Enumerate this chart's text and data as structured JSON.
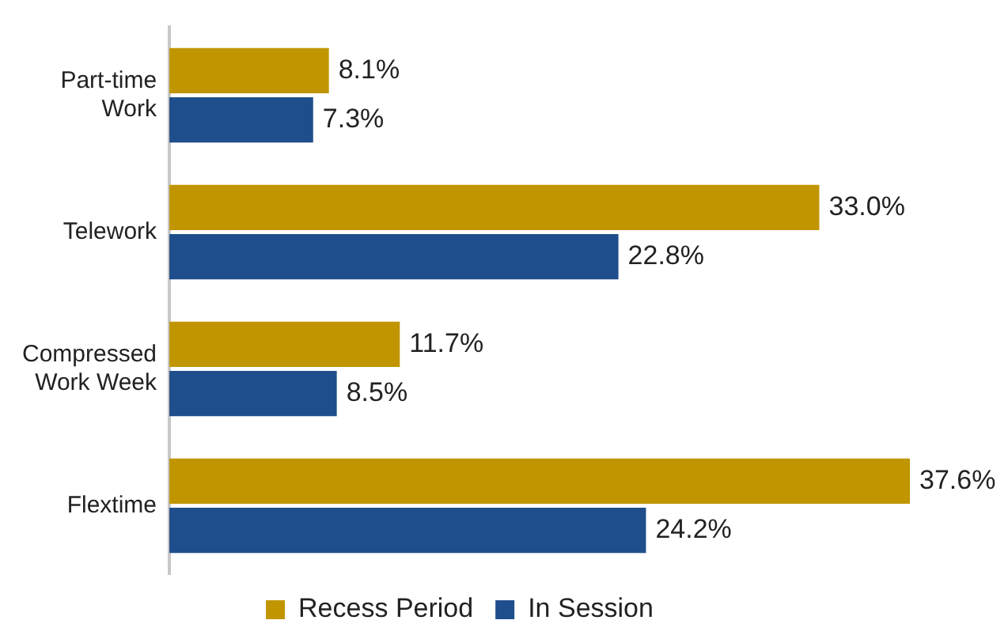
{
  "chart_data": {
    "type": "bar",
    "orientation": "horizontal",
    "categories": [
      "Part-time\nWork",
      "Telework",
      "Compressed\nWork Week",
      "Flextime"
    ],
    "series": [
      {
        "name": "Recess Period",
        "color": "#c09500",
        "values": [
          8.1,
          33.0,
          11.7,
          37.6
        ],
        "value_labels": [
          "8.1%",
          "33.0%",
          "11.7%",
          "37.6%"
        ]
      },
      {
        "name": "In Session",
        "color": "#1f4e8c",
        "values": [
          7.3,
          22.8,
          8.5,
          24.2
        ],
        "value_labels": [
          "7.3%",
          "22.8%",
          "8.5%",
          "24.2%"
        ]
      }
    ],
    "legend": "bottom"
  }
}
